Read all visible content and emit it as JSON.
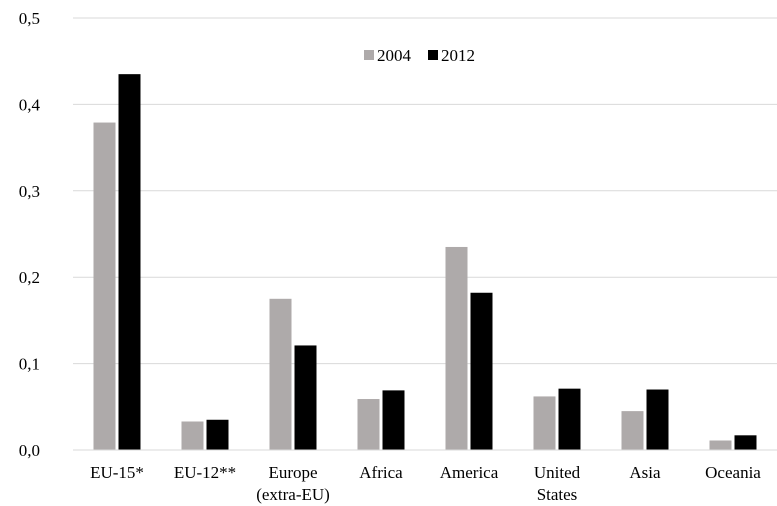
{
  "chart_data": {
    "type": "bar",
    "title": "",
    "xlabel": "",
    "ylabel": "",
    "ylim": [
      0,
      0.5
    ],
    "yticks": [
      {
        "value": 0.0,
        "label": "0,0"
      },
      {
        "value": 0.1,
        "label": "0,1"
      },
      {
        "value": 0.2,
        "label": "0,2"
      },
      {
        "value": 0.3,
        "label": "0,3"
      },
      {
        "value": 0.4,
        "label": "0,4"
      },
      {
        "value": 0.5,
        "label": "0,5"
      }
    ],
    "grid": true,
    "legend_position": "top-center",
    "categories": [
      [
        "EU-15*"
      ],
      [
        "EU-12**"
      ],
      [
        "Europe",
        "(extra-EU)"
      ],
      [
        "Africa"
      ],
      [
        "America"
      ],
      [
        "United",
        "States"
      ],
      [
        "Asia"
      ],
      [
        "Oceania"
      ]
    ],
    "series": [
      {
        "name": "2004",
        "color": "#aeaaaa",
        "values": [
          0.379,
          0.033,
          0.175,
          0.059,
          0.235,
          0.062,
          0.045,
          0.011
        ]
      },
      {
        "name": "2012",
        "color": "#000000",
        "values": [
          0.435,
          0.035,
          0.121,
          0.069,
          0.182,
          0.071,
          0.07,
          0.017
        ]
      }
    ]
  }
}
